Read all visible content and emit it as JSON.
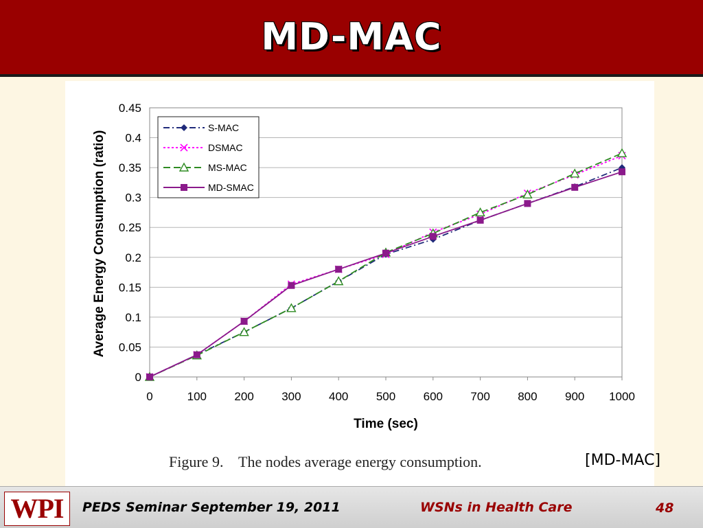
{
  "slide": {
    "title": "MD-MAC"
  },
  "figure": {
    "caption": "Figure 9.    The nodes average energy consumption.",
    "source": "[MD-MAC]"
  },
  "footer": {
    "logo": "WPI",
    "left": "PEDS Seminar September 19, 2011",
    "center": "WSNs in Health Care",
    "page": "48"
  },
  "chart_data": {
    "type": "line",
    "xlabel": "Time (sec)",
    "ylabel": "Average Energy Consumption (ratio)",
    "x": [
      0,
      100,
      200,
      300,
      400,
      500,
      600,
      700,
      800,
      900,
      1000
    ],
    "xlim": [
      0,
      1000
    ],
    "ylim": [
      0,
      0.45
    ],
    "x_ticks": [
      "0",
      "100",
      "200",
      "300",
      "400",
      "500",
      "600",
      "700",
      "800",
      "900",
      "1000"
    ],
    "y_ticks": [
      "0",
      "0.05",
      "0.1",
      "0.15",
      "0.2",
      "0.25",
      "0.3",
      "0.35",
      "0.4",
      "0.45"
    ],
    "grid": "horizontal",
    "legend": "top-left",
    "series": [
      {
        "name": "S-MAC",
        "color": "#1f2a7a",
        "marker": "diamond",
        "dash": "9,4,2,4",
        "values": [
          0,
          0.037,
          0.075,
          0.115,
          0.16,
          0.205,
          0.23,
          0.262,
          0.29,
          0.318,
          0.35
        ]
      },
      {
        "name": "DSMAC",
        "color": "#ff00ff",
        "marker": "x",
        "dash": "3,3",
        "values": [
          0,
          0.037,
          0.093,
          0.155,
          0.18,
          0.205,
          0.242,
          0.272,
          0.307,
          0.338,
          0.37
        ]
      },
      {
        "name": "MS-MAC",
        "color": "#2e8b22",
        "marker": "triangle",
        "dash": "10,5",
        "values": [
          0,
          0.036,
          0.075,
          0.115,
          0.16,
          0.208,
          0.24,
          0.275,
          0.305,
          0.34,
          0.374
        ]
      },
      {
        "name": "MD-SMAC",
        "color": "#8b1a8b",
        "marker": "square",
        "dash": "",
        "values": [
          0,
          0.037,
          0.093,
          0.153,
          0.18,
          0.207,
          0.235,
          0.262,
          0.29,
          0.317,
          0.343
        ]
      }
    ]
  }
}
